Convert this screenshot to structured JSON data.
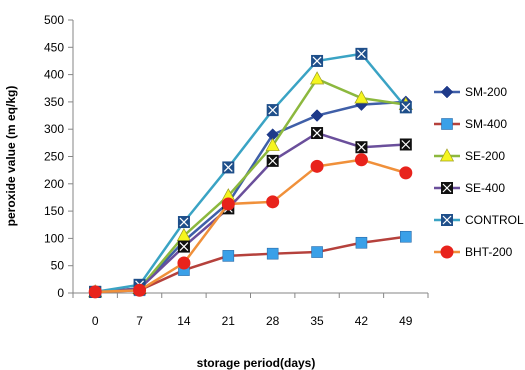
{
  "chart_data": {
    "type": "line",
    "title": "",
    "xlabel": "storage period(days)",
    "ylabel": "peroxide value (m eq/kg)",
    "x": [
      0,
      7,
      14,
      21,
      28,
      35,
      42,
      49
    ],
    "ylim": [
      0,
      500
    ],
    "yticks": [
      0,
      50,
      100,
      150,
      200,
      250,
      300,
      350,
      400,
      450,
      500
    ],
    "grid": false,
    "legend_position": "right",
    "series": [
      {
        "name": "SM-200",
        "color": "#3f5fa8",
        "marker": "diamond",
        "marker_color": "#1f3a8a",
        "values": [
          2,
          8,
          95,
          165,
          290,
          325,
          345,
          350
        ]
      },
      {
        "name": "SM-400",
        "color": "#b5413c",
        "marker": "square",
        "marker_color": "#3aa0e8",
        "values": [
          2,
          5,
          42,
          68,
          72,
          75,
          92,
          103
        ]
      },
      {
        "name": "SE-200",
        "color": "#8cb83e",
        "marker": "triangle",
        "marker_color": "#f5f51e",
        "values": [
          2,
          8,
          105,
          178,
          270,
          392,
          357,
          345
        ]
      },
      {
        "name": "SE-400",
        "color": "#6a4f9b",
        "marker": "x-square",
        "marker_color": "#111111",
        "values": [
          2,
          8,
          85,
          155,
          242,
          293,
          267,
          272
        ]
      },
      {
        "name": "CONTROL",
        "color": "#3aa3c4",
        "marker": "x-square",
        "marker_color": "#1f4f8a",
        "values": [
          2,
          15,
          130,
          230,
          335,
          425,
          438,
          340
        ]
      },
      {
        "name": "BHT-200",
        "color": "#f0903a",
        "marker": "circle",
        "marker_color": "#e8231c",
        "values": [
          2,
          5,
          55,
          163,
          167,
          232,
          244,
          220
        ]
      }
    ]
  }
}
